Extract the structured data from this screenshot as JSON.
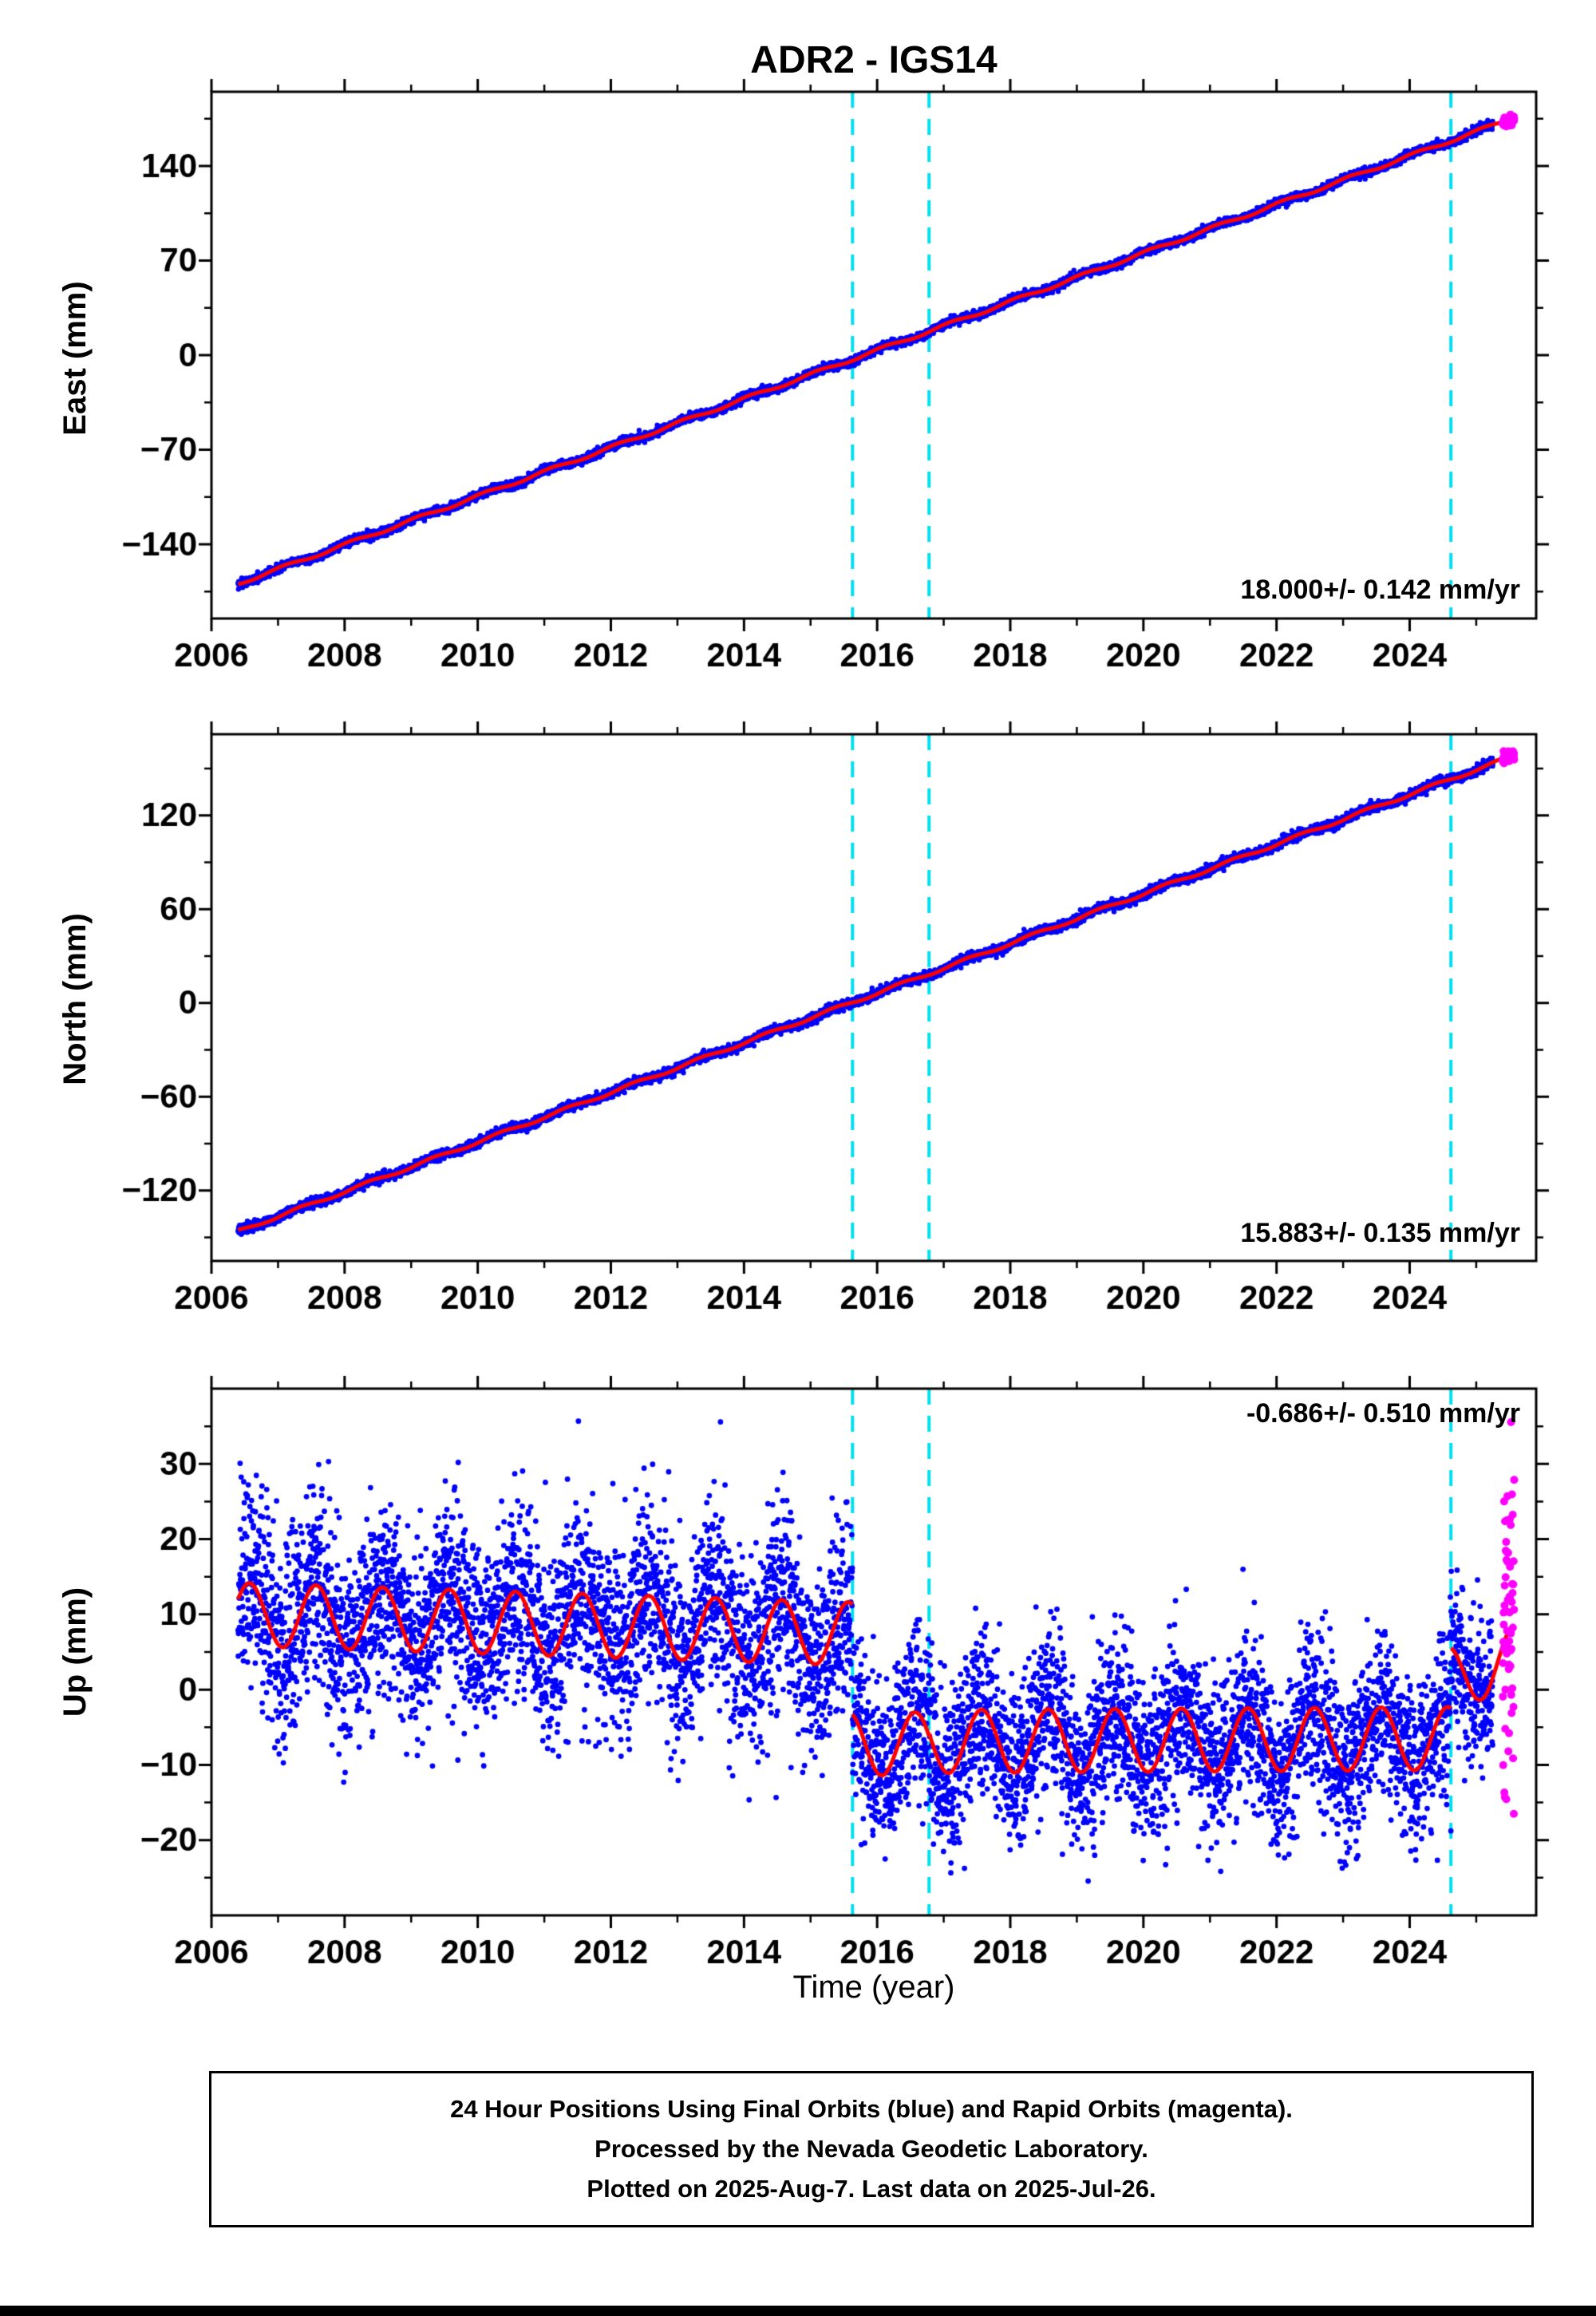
{
  "title": "ADR2 - IGS14",
  "xlabel": "Time (year)",
  "caption": {
    "line1": "24 Hour Positions Using Final Orbits (blue) and Rapid Orbits (magenta).",
    "line2": "Processed by the Nevada Geodetic Laboratory.",
    "line3": "Plotted on 2025-Aug-7. Last data on 2025-Jul-26."
  },
  "colors": {
    "final_orbit": "#0000ff",
    "rapid_orbit": "#ff00ff",
    "model_line": "#ff0000",
    "event_line": "#00dff0",
    "axis": "#000000",
    "background": "#ffffff"
  },
  "chart_data": [
    {
      "name": "east",
      "type": "scatter",
      "ylabel": "East (mm)",
      "rate_label": "18.000+/- 0.142 mm/yr",
      "rate_mm_per_yr": 18.0,
      "rate_uncertainty_mm_per_yr": 0.142,
      "rate_label_position": "bottom-right",
      "xlim": [
        2006,
        2025.9
      ],
      "ylim": [
        -195,
        195
      ],
      "xticks": [
        2006,
        2008,
        2010,
        2012,
        2014,
        2016,
        2018,
        2020,
        2022,
        2024
      ],
      "yticks": [
        -140,
        -70,
        0,
        70,
        140
      ],
      "ytick_minor": 35,
      "grid": false,
      "event_lines_year": [
        2015.63,
        2016.78,
        2024.62
      ],
      "series": {
        "final_start": 2006.4,
        "final_end": 2025.25,
        "rapid_start": 2025.4,
        "rapid_end": 2025.57,
        "trend_mm_per_yr": 18.0,
        "zero_year": 2015.8,
        "seasonal_amp_mm": 1.2,
        "seasonal_phase": 0.1,
        "noise_sigma_mm": 1.5,
        "rapid_noise_sigma_mm": 2.0,
        "point_radius": 3.2,
        "rapid_point_radius": 5
      }
    },
    {
      "name": "north",
      "type": "scatter",
      "ylabel": "North (mm)",
      "rate_label": "15.883+/- 0.135 mm/yr",
      "rate_mm_per_yr": 15.883,
      "rate_uncertainty_mm_per_yr": 0.135,
      "rate_label_position": "bottom-right",
      "xlim": [
        2006,
        2025.9
      ],
      "ylim": [
        -165,
        172
      ],
      "xticks": [
        2006,
        2008,
        2010,
        2012,
        2014,
        2016,
        2018,
        2020,
        2022,
        2024
      ],
      "yticks": [
        -120,
        -60,
        0,
        60,
        120
      ],
      "ytick_minor": 30,
      "grid": false,
      "event_lines_year": [
        2015.63,
        2016.78,
        2024.62
      ],
      "series": {
        "final_start": 2006.4,
        "final_end": 2025.25,
        "rapid_start": 2025.4,
        "rapid_end": 2025.57,
        "trend_mm_per_yr": 15.883,
        "zero_year": 2015.6,
        "seasonal_amp_mm": 1.0,
        "seasonal_phase": 0.35,
        "noise_sigma_mm": 1.4,
        "rapid_noise_sigma_mm": 2.0,
        "point_radius": 3.2,
        "rapid_point_radius": 5
      }
    },
    {
      "name": "up",
      "type": "scatter",
      "ylabel": "Up (mm)",
      "rate_label": "-0.686+/- 0.510 mm/yr",
      "rate_mm_per_yr": -0.686,
      "rate_uncertainty_mm_per_yr": 0.51,
      "rate_label_position": "top-right",
      "xlim": [
        2006,
        2025.9
      ],
      "ylim": [
        -30,
        40
      ],
      "xticks": [
        2006,
        2008,
        2010,
        2012,
        2014,
        2016,
        2018,
        2020,
        2022,
        2024
      ],
      "yticks": [
        -20,
        -10,
        0,
        10,
        20,
        30
      ],
      "ytick_minor": 5,
      "grid": false,
      "event_lines_year": [
        2015.63,
        2016.78,
        2024.62
      ],
      "series": {
        "final_start": 2006.4,
        "final_end": 2025.25,
        "rapid_start": 2025.4,
        "rapid_end": 2025.57,
        "seasonal_amp_mm": 4.2,
        "seasonal_phase": 0.57,
        "rapid_noise_sigma_mm": 9,
        "point_radius": 3.4,
        "rapid_point_radius": 5,
        "segments": [
          {
            "start": 2006.4,
            "end": 2015.63,
            "mean_mm": 10.0,
            "slope_mm_per_yr": -0.28,
            "noise_sigma_mm": 6.3
          },
          {
            "start": 2015.63,
            "end": 2016.78,
            "mean_mm": -7.2,
            "slope_mm_per_yr": 0.0,
            "noise_sigma_mm": 5.5
          },
          {
            "start": 2016.78,
            "end": 2024.62,
            "mean_mm": -6.9,
            "slope_mm_per_yr": 0.05,
            "noise_sigma_mm": 5.4
          },
          {
            "start": 2024.62,
            "end": 2025.57,
            "mean_mm": 1.5,
            "slope_mm_per_yr": 3.0,
            "noise_sigma_mm": 5.0
          }
        ]
      }
    }
  ]
}
